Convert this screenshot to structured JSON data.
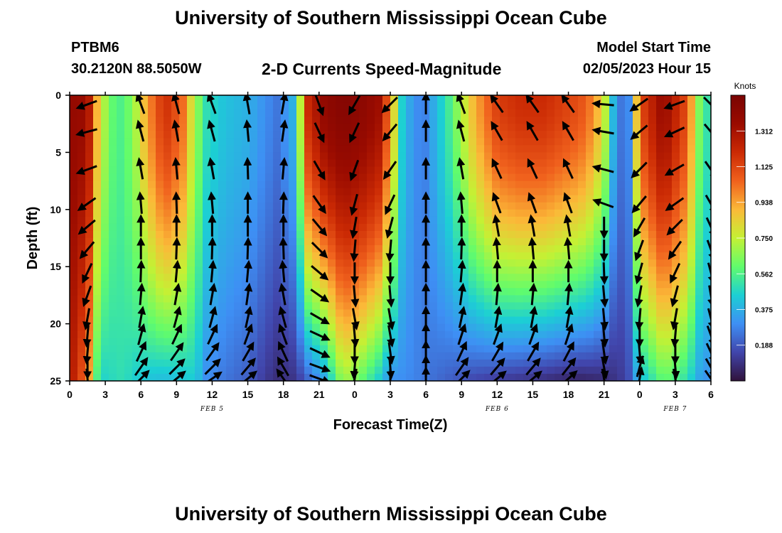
{
  "header": {
    "title": "University of Southern Mississippi Ocean Cube",
    "station_id": "PTBM6",
    "station_coords": "30.2120N  88.5050W",
    "subtitle": "2-D Currents Speed-Magnitude",
    "start_label": "Model Start Time",
    "start_time": "02/05/2023 Hour 15"
  },
  "footer": {
    "title": "University of Southern Mississippi Ocean Cube"
  },
  "chart_data": {
    "type": "heatmap",
    "xlabel": "Forecast Time(Z)",
    "ylabel": "Depth (ft)",
    "x_range_hours": [
      0,
      54
    ],
    "y_range_ft": [
      0,
      25
    ],
    "y_inverted": true,
    "x_tick_labels": [
      "0",
      "3",
      "6",
      "9",
      "12",
      "15",
      "18",
      "21",
      "0",
      "3",
      "6",
      "9",
      "12",
      "15",
      "18",
      "21",
      "0",
      "3",
      "6"
    ],
    "y_tick_values": [
      0,
      5,
      10,
      15,
      20,
      25
    ],
    "y_tick_labels": [
      "0",
      "5",
      "10",
      "15",
      "20",
      "25"
    ],
    "date_labels": [
      {
        "text": "FEB 5",
        "hour": 12
      },
      {
        "text": "FEB 6",
        "hour": 36
      },
      {
        "text": "FEB 7",
        "hour": 51
      }
    ],
    "colorbar": {
      "title": "Knots",
      "range": [
        0,
        1.5
      ],
      "tick_values": [
        0.188,
        0.375,
        0.562,
        0.75,
        0.938,
        1.125,
        1.312
      ],
      "tick_labels": [
        "0.188",
        "0.375",
        "0.562",
        "0.750",
        "0.938",
        "1.125",
        "1.312"
      ]
    },
    "speed_profile": {
      "description_hours": "surface and deep speed (knots) by forecast hour",
      "hours": [
        0,
        1.5,
        2.5,
        3.5,
        4.5,
        5.5,
        6.5,
        8,
        9.5,
        10.5,
        11.5,
        13,
        15,
        16.5,
        17.5,
        19,
        20,
        21.5,
        23,
        24.5,
        26,
        27,
        28,
        29,
        30,
        32,
        34,
        36,
        38,
        40,
        41.5,
        43,
        44,
        45,
        46,
        47,
        48,
        50,
        52,
        53,
        54
      ],
      "surface": [
        1.38,
        1.35,
        0.8,
        0.6,
        0.55,
        0.7,
        0.95,
        1.2,
        1.05,
        0.72,
        0.5,
        0.42,
        0.38,
        0.3,
        0.25,
        0.4,
        1.2,
        1.4,
        1.45,
        1.42,
        1.35,
        1.0,
        0.45,
        0.3,
        0.28,
        0.55,
        0.9,
        1.15,
        1.2,
        1.2,
        1.15,
        1.1,
        1.0,
        0.8,
        0.28,
        0.22,
        1.1,
        1.38,
        1.1,
        0.65,
        0.45
      ],
      "deep": [
        1.3,
        1.0,
        0.45,
        0.48,
        0.5,
        0.45,
        0.42,
        0.4,
        0.42,
        0.45,
        0.3,
        0.25,
        0.2,
        0.12,
        0.08,
        0.1,
        0.2,
        0.35,
        0.7,
        0.6,
        0.45,
        0.3,
        0.3,
        0.28,
        0.25,
        0.2,
        0.15,
        0.12,
        0.1,
        0.08,
        0.06,
        0.05,
        0.06,
        0.07,
        0.1,
        0.15,
        0.4,
        0.6,
        0.5,
        0.35,
        0.3
      ]
    },
    "vector_columns": [
      {
        "hour": 1.5,
        "angles_deg": [
          200,
          195,
          200,
          215,
          220,
          230,
          245,
          250,
          260,
          265,
          265,
          270,
          275
        ]
      },
      {
        "hour": 6,
        "angles_deg": [
          110,
          105,
          100,
          95,
          90,
          90,
          88,
          85,
          80,
          75,
          65,
          55,
          45
        ]
      },
      {
        "hour": 9,
        "angles_deg": [
          105,
          100,
          95,
          92,
          90,
          88,
          85,
          80,
          75,
          65,
          55,
          45,
          40
        ]
      },
      {
        "hour": 12,
        "angles_deg": [
          110,
          105,
          100,
          95,
          90,
          88,
          85,
          80,
          75,
          65,
          55,
          45,
          35
        ]
      },
      {
        "hour": 15,
        "angles_deg": [
          100,
          95,
          92,
          90,
          90,
          88,
          85,
          82,
          78,
          70,
          60,
          50,
          40
        ]
      },
      {
        "hour": 18,
        "angles_deg": [
          80,
          82,
          85,
          88,
          90,
          92,
          95,
          100,
          105,
          110,
          115,
          120,
          125
        ]
      },
      {
        "hour": 21,
        "angles_deg": [
          290,
          295,
          300,
          305,
          310,
          315,
          320,
          325,
          330,
          335,
          335,
          340,
          340
        ]
      },
      {
        "hour": 24,
        "angles_deg": [
          240,
          245,
          250,
          255,
          260,
          265,
          270,
          275,
          280,
          275,
          270,
          265,
          260
        ]
      },
      {
        "hour": 27,
        "angles_deg": [
          225,
          230,
          235,
          245,
          255,
          265,
          270,
          275,
          280,
          280,
          278,
          275,
          270
        ]
      },
      {
        "hour": 30,
        "angles_deg": [
          90,
          90,
          90,
          90,
          90,
          90,
          90,
          90,
          90,
          90,
          90,
          90,
          90
        ]
      },
      {
        "hour": 33,
        "angles_deg": [
          110,
          105,
          100,
          95,
          90,
          88,
          85,
          82,
          78,
          72,
          65,
          55,
          45
        ]
      },
      {
        "hour": 36,
        "angles_deg": [
          125,
          120,
          115,
          110,
          100,
          95,
          90,
          85,
          80,
          70,
          60,
          50,
          40
        ]
      },
      {
        "hour": 39,
        "angles_deg": [
          125,
          120,
          115,
          110,
          100,
          95,
          90,
          85,
          80,
          70,
          60,
          50,
          40
        ]
      },
      {
        "hour": 42,
        "angles_deg": [
          125,
          120,
          115,
          110,
          100,
          95,
          90,
          85,
          80,
          72,
          62,
          52,
          42
        ]
      },
      {
        "hour": 45,
        "angles_deg": [
          175,
          170,
          165,
          160,
          270,
          270,
          272,
          275,
          275,
          275,
          278,
          280,
          280
        ]
      },
      {
        "hour": 48,
        "angles_deg": [
          215,
          220,
          225,
          230,
          240,
          250,
          255,
          260,
          265,
          270,
          275,
          75,
          80
        ]
      },
      {
        "hour": 51,
        "angles_deg": [
          200,
          205,
          210,
          215,
          225,
          235,
          245,
          255,
          260,
          265,
          270,
          275,
          280
        ]
      },
      {
        "hour": 54,
        "angles_deg": [
          315,
          310,
          305,
          300,
          295,
          290,
          285,
          280,
          285,
          290,
          295,
          300,
          305
        ]
      }
    ]
  }
}
